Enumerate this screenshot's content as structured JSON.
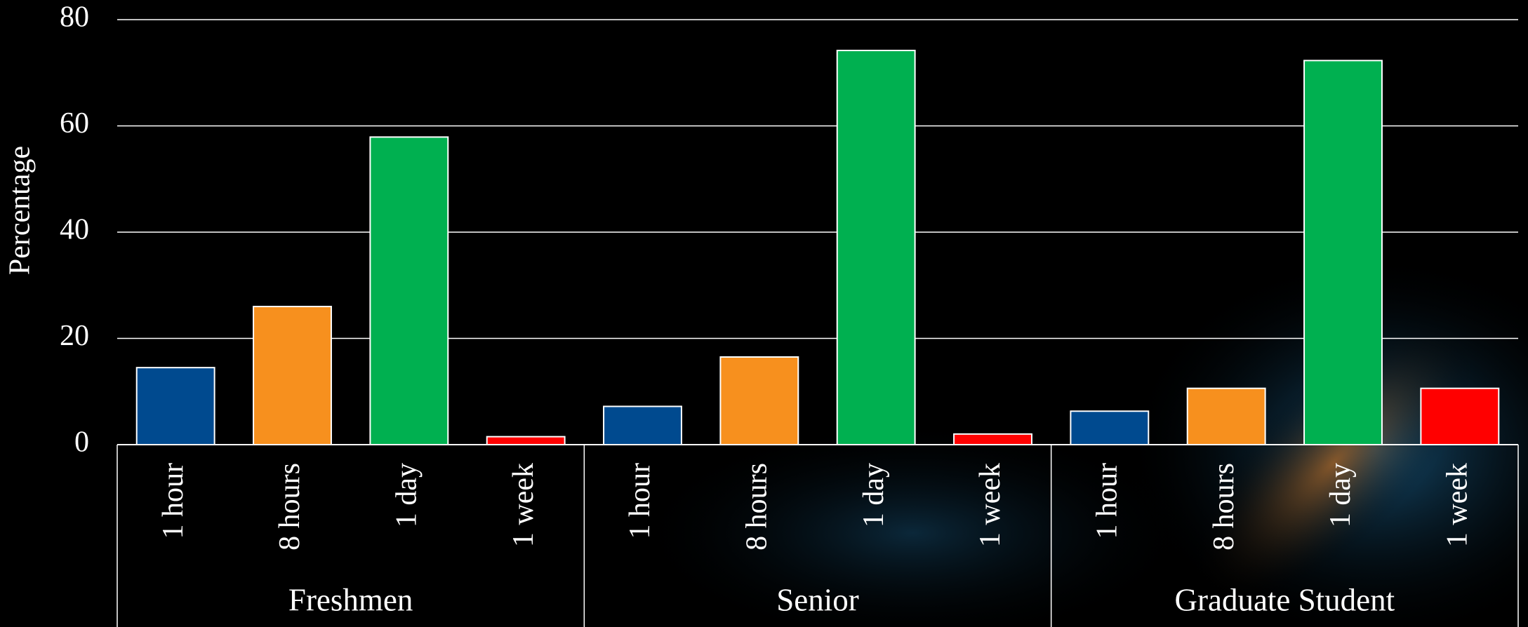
{
  "chart_data": {
    "type": "grouped-bar",
    "y_label": "Percentage",
    "categories": [
      "Freshmen",
      "Senior",
      "Graduate Student"
    ],
    "series": [
      {
        "name": "1 hour",
        "color": "#004a8f",
        "values": [
          14.5,
          7.2,
          6.3
        ]
      },
      {
        "name": "8 hours",
        "color": "#f7901e",
        "values": [
          26,
          16.5,
          10.6
        ]
      },
      {
        "name": "1 day",
        "color": "#00b050",
        "values": [
          57.9,
          74.2,
          72.3
        ]
      },
      {
        "name": "1 week",
        "color": "#ff0000",
        "values": [
          1.5,
          2,
          10.6
        ]
      }
    ],
    "ylim": [
      0,
      80
    ],
    "yticks": [
      0,
      20,
      40,
      60,
      80
    ],
    "grid": true
  }
}
